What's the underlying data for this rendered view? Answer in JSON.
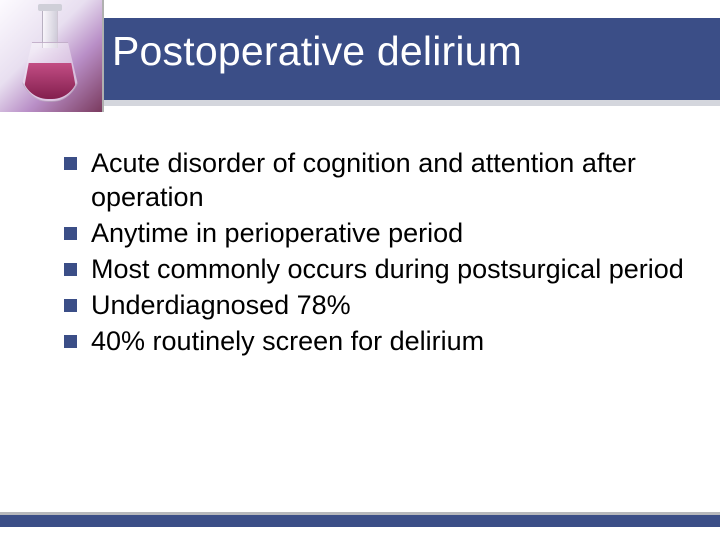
{
  "slide": {
    "title": "Postoperative delirium",
    "title_color": "#ffffff",
    "title_fontsize": 41,
    "band_color": "#3b4e87",
    "bullets": [
      "Acute disorder of cognition and attention after operation",
      "Anytime in perioperative period",
      "Most commonly occurs during postsurgical period",
      "Underdiagnosed 78%",
      "40% routinely screen for delirium"
    ],
    "bullet_marker_color": "#3b4e87",
    "bullet_text_color": "#000000",
    "bullet_fontsize": 27,
    "background_color": "#ffffff",
    "footer_band_color": "#3b4e87",
    "logo_gradient": [
      "#fdfbff",
      "#e8dff0",
      "#b98fc7",
      "#7a3a5e"
    ],
    "flask_liquid_color": [
      "#c24d84",
      "#831f4e"
    ]
  }
}
